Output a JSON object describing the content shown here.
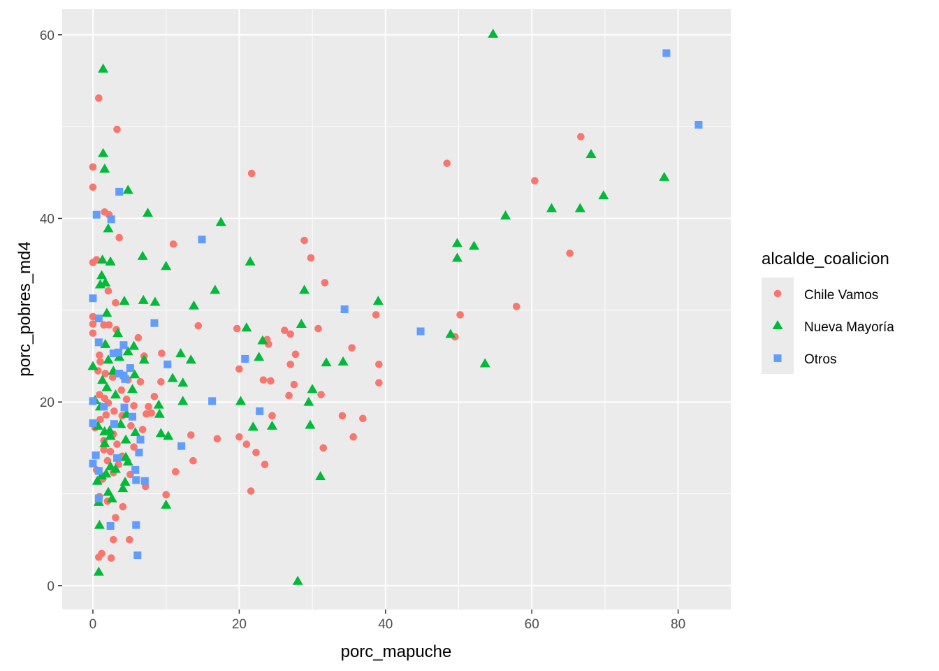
{
  "chart_data": {
    "type": "scatter",
    "title": "",
    "xlabel": "porc_mapuche",
    "ylabel": "porc_pobres_md4",
    "xlim": [
      -4.2,
      87.2
    ],
    "ylim": [
      -2.6,
      62.8
    ],
    "x_ticks": [
      0,
      20,
      40,
      60,
      80
    ],
    "y_ticks": [
      0,
      20,
      40,
      60
    ],
    "x_tick_labels": [
      "0",
      "20",
      "40",
      "60",
      "80"
    ],
    "y_tick_labels": [
      "0",
      "20",
      "40",
      "60"
    ],
    "grid": true,
    "legend": {
      "title": "alcalde_coalicion",
      "position": "right"
    },
    "series": [
      {
        "name": "Chile Vamos",
        "color": "#F8766D",
        "shape": "circle",
        "points": [
          [
            0.8,
            53.1
          ],
          [
            3.3,
            49.7
          ],
          [
            0.0,
            45.6
          ],
          [
            0.0,
            43.4
          ],
          [
            1.6,
            40.7
          ],
          [
            2.2,
            40.4
          ],
          [
            3.6,
            37.9
          ],
          [
            0.5,
            35.5
          ],
          [
            0.0,
            35.2
          ],
          [
            2.1,
            32.1
          ],
          [
            3.1,
            30.8
          ],
          [
            0.0,
            29.3
          ],
          [
            0.0,
            28.5
          ],
          [
            1.5,
            28.4
          ],
          [
            2.2,
            28.4
          ],
          [
            3.2,
            27.9
          ],
          [
            0.0,
            27.5
          ],
          [
            6.2,
            27.0
          ],
          [
            0.9,
            25.1
          ],
          [
            1.0,
            24.4
          ],
          [
            0.7,
            23.4
          ],
          [
            1.7,
            23.1
          ],
          [
            2.7,
            22.7
          ],
          [
            4.8,
            22.4
          ],
          [
            6.5,
            22.2
          ],
          [
            3.9,
            21.3
          ],
          [
            0.9,
            20.8
          ],
          [
            1.6,
            20.4
          ],
          [
            4.6,
            20.3
          ],
          [
            2.1,
            19.9
          ],
          [
            5.6,
            19.6
          ],
          [
            7.6,
            19.5
          ],
          [
            2.9,
            19.0
          ],
          [
            1.8,
            18.6
          ],
          [
            4.0,
            18.5
          ],
          [
            8.0,
            18.8
          ],
          [
            1.0,
            18.1
          ],
          [
            0.3,
            17.2
          ],
          [
            5.2,
            17.4
          ],
          [
            6.8,
            17.0
          ],
          [
            2.8,
            16.5
          ],
          [
            1.5,
            15.8
          ],
          [
            3.3,
            15.4
          ],
          [
            5.6,
            15.1
          ],
          [
            1.5,
            14.8
          ],
          [
            2.4,
            14.6
          ],
          [
            4.0,
            14.1
          ],
          [
            2.0,
            13.6
          ],
          [
            3.5,
            13.2
          ],
          [
            0.5,
            12.6
          ],
          [
            2.8,
            12.3
          ],
          [
            5.1,
            12.1
          ],
          [
            1.3,
            11.6
          ],
          [
            7.2,
            10.8
          ],
          [
            0.9,
            9.7
          ],
          [
            2.0,
            9.2
          ],
          [
            4.1,
            8.6
          ],
          [
            3.1,
            7.4
          ],
          [
            2.8,
            5.0
          ],
          [
            5.0,
            5.0
          ],
          [
            1.2,
            3.5
          ],
          [
            0.8,
            3.1
          ],
          [
            2.5,
            3.0
          ],
          [
            9.4,
            25.3
          ],
          [
            9.3,
            22.2
          ],
          [
            8.4,
            20.6
          ],
          [
            7.0,
            25.0
          ],
          [
            7.3,
            18.7
          ],
          [
            10.0,
            9.9
          ],
          [
            11.3,
            12.4
          ],
          [
            11.0,
            37.2
          ],
          [
            13.4,
            16.4
          ],
          [
            13.7,
            13.6
          ],
          [
            14.4,
            28.3
          ],
          [
            17.0,
            16.0
          ],
          [
            19.7,
            28.0
          ],
          [
            20.0,
            16.2
          ],
          [
            20.0,
            23.6
          ],
          [
            21.0,
            15.4
          ],
          [
            21.6,
            10.3
          ],
          [
            21.7,
            44.9
          ],
          [
            22.3,
            14.5
          ],
          [
            23.3,
            22.4
          ],
          [
            23.5,
            13.2
          ],
          [
            23.8,
            26.8
          ],
          [
            24.0,
            26.3
          ],
          [
            24.3,
            22.3
          ],
          [
            24.5,
            18.5
          ],
          [
            26.2,
            27.8
          ],
          [
            26.8,
            20.7
          ],
          [
            27.0,
            27.4
          ],
          [
            27.0,
            24.1
          ],
          [
            27.5,
            21.9
          ],
          [
            27.7,
            25.2
          ],
          [
            28.9,
            37.6
          ],
          [
            29.8,
            35.7
          ],
          [
            30.8,
            28.0
          ],
          [
            31.2,
            20.8
          ],
          [
            31.5,
            15.0
          ],
          [
            31.7,
            33.0
          ],
          [
            34.1,
            18.5
          ],
          [
            35.4,
            25.9
          ],
          [
            35.6,
            16.2
          ],
          [
            36.9,
            18.2
          ],
          [
            38.7,
            29.5
          ],
          [
            39.1,
            24.1
          ],
          [
            39.1,
            22.1
          ],
          [
            48.4,
            46.0
          ],
          [
            49.5,
            27.1
          ],
          [
            50.2,
            29.5
          ],
          [
            57.9,
            30.4
          ],
          [
            60.4,
            44.1
          ],
          [
            65.2,
            36.2
          ],
          [
            66.7,
            48.9
          ]
        ]
      },
      {
        "name": "Nueva Mayoría",
        "color": "#00BA38",
        "shape": "triangle",
        "points": [
          [
            1.4,
            56.3
          ],
          [
            1.4,
            47.1
          ],
          [
            1.6,
            45.4
          ],
          [
            4.8,
            43.1
          ],
          [
            2.1,
            38.9
          ],
          [
            1.3,
            35.5
          ],
          [
            2.4,
            35.3
          ],
          [
            1.2,
            33.8
          ],
          [
            1.7,
            33.0
          ],
          [
            1.0,
            32.8
          ],
          [
            4.3,
            31.0
          ],
          [
            1.9,
            29.7
          ],
          [
            3.4,
            27.5
          ],
          [
            1.7,
            26.3
          ],
          [
            5.6,
            26.1
          ],
          [
            3.6,
            24.9
          ],
          [
            4.8,
            25.5
          ],
          [
            2.1,
            24.6
          ],
          [
            0.0,
            23.9
          ],
          [
            2.8,
            23.4
          ],
          [
            5.7,
            23.0
          ],
          [
            1.3,
            22.4
          ],
          [
            1.9,
            21.6
          ],
          [
            3.1,
            20.8
          ],
          [
            0.3,
            20.2
          ],
          [
            1.0,
            19.5
          ],
          [
            5.4,
            21.4
          ],
          [
            4.6,
            18.7
          ],
          [
            0.7,
            17.4
          ],
          [
            3.8,
            17.6
          ],
          [
            2.3,
            16.9
          ],
          [
            2.4,
            16.3
          ],
          [
            1.6,
            16.8
          ],
          [
            4.5,
            15.9
          ],
          [
            5.8,
            16.7
          ],
          [
            1.6,
            15.5
          ],
          [
            4.5,
            14.0
          ],
          [
            4.8,
            13.5
          ],
          [
            2.4,
            13.0
          ],
          [
            3.1,
            12.7
          ],
          [
            1.8,
            12.2
          ],
          [
            1.2,
            12.0
          ],
          [
            0.6,
            11.4
          ],
          [
            4.4,
            11.3
          ],
          [
            4.1,
            10.6
          ],
          [
            2.1,
            10.2
          ],
          [
            2.6,
            9.5
          ],
          [
            0.8,
            9.1
          ],
          [
            0.9,
            6.6
          ],
          [
            0.8,
            1.5
          ],
          [
            6.8,
            35.9
          ],
          [
            7.5,
            40.6
          ],
          [
            6.9,
            31.1
          ],
          [
            8.5,
            30.9
          ],
          [
            10.0,
            34.8
          ],
          [
            7.0,
            24.6
          ],
          [
            9.0,
            19.7
          ],
          [
            9.1,
            18.7
          ],
          [
            9.3,
            16.6
          ],
          [
            10.3,
            16.3
          ],
          [
            10.0,
            8.8
          ],
          [
            10.9,
            22.6
          ],
          [
            12.0,
            25.3
          ],
          [
            12.3,
            22.1
          ],
          [
            12.3,
            20.1
          ],
          [
            13.4,
            24.6
          ],
          [
            13.8,
            30.5
          ],
          [
            16.7,
            32.2
          ],
          [
            17.5,
            39.6
          ],
          [
            20.2,
            20.1
          ],
          [
            21.0,
            28.1
          ],
          [
            21.5,
            35.3
          ],
          [
            21.9,
            17.3
          ],
          [
            22.7,
            24.9
          ],
          [
            23.2,
            26.7
          ],
          [
            24.5,
            17.4
          ],
          [
            28.0,
            0.5
          ],
          [
            28.5,
            28.5
          ],
          [
            28.9,
            32.2
          ],
          [
            29.5,
            20.0
          ],
          [
            29.7,
            17.5
          ],
          [
            30.0,
            21.4
          ],
          [
            31.1,
            11.9
          ],
          [
            31.9,
            24.3
          ],
          [
            34.2,
            24.4
          ],
          [
            39.0,
            31.0
          ],
          [
            48.9,
            27.4
          ],
          [
            49.8,
            37.3
          ],
          [
            49.8,
            35.7
          ],
          [
            52.1,
            37.0
          ],
          [
            53.6,
            24.2
          ],
          [
            54.7,
            60.1
          ],
          [
            56.4,
            40.3
          ],
          [
            62.7,
            41.1
          ],
          [
            66.6,
            41.1
          ],
          [
            68.1,
            47.0
          ],
          [
            69.8,
            42.5
          ],
          [
            78.1,
            44.5
          ]
        ]
      },
      {
        "name": "Otros",
        "color": "#619CFF",
        "shape": "square",
        "points": [
          [
            3.6,
            42.9
          ],
          [
            0.5,
            40.4
          ],
          [
            2.5,
            39.9
          ],
          [
            0.0,
            31.3
          ],
          [
            14.9,
            37.7
          ],
          [
            0.8,
            29.1
          ],
          [
            8.4,
            28.6
          ],
          [
            0.8,
            26.5
          ],
          [
            4.2,
            26.2
          ],
          [
            3.5,
            25.4
          ],
          [
            2.8,
            25.3
          ],
          [
            5.1,
            23.7
          ],
          [
            3.6,
            23.1
          ],
          [
            4.2,
            22.9
          ],
          [
            4.4,
            22.5
          ],
          [
            10.2,
            24.1
          ],
          [
            20.8,
            24.7
          ],
          [
            34.4,
            30.1
          ],
          [
            44.8,
            27.7
          ],
          [
            0.0,
            20.1
          ],
          [
            1.5,
            19.5
          ],
          [
            4.3,
            19.4
          ],
          [
            16.3,
            20.1
          ],
          [
            22.8,
            19.0
          ],
          [
            5.4,
            18.4
          ],
          [
            0.0,
            17.7
          ],
          [
            2.9,
            17.6
          ],
          [
            6.5,
            15.9
          ],
          [
            6.3,
            14.5
          ],
          [
            12.1,
            15.2
          ],
          [
            0.4,
            14.2
          ],
          [
            0.0,
            13.3
          ],
          [
            3.3,
            13.9
          ],
          [
            0.8,
            12.5
          ],
          [
            5.8,
            12.6
          ],
          [
            5.9,
            11.5
          ],
          [
            7.1,
            11.4
          ],
          [
            0.8,
            9.5
          ],
          [
            2.4,
            6.5
          ],
          [
            5.9,
            6.6
          ],
          [
            6.1,
            3.3
          ],
          [
            78.4,
            58.0
          ],
          [
            82.8,
            50.2
          ]
        ]
      }
    ]
  }
}
